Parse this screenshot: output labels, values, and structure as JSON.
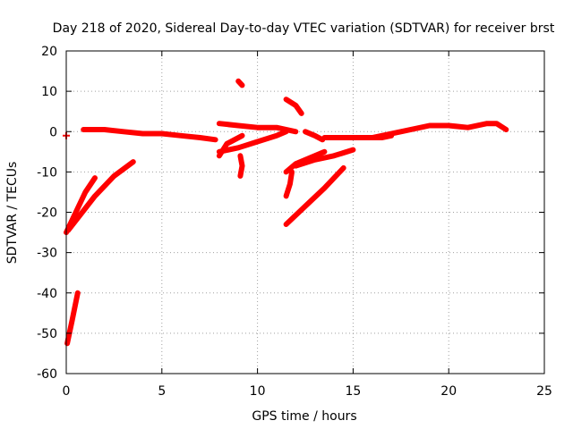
{
  "chart_data": {
    "type": "scatter",
    "title": "Day 218 of 2020, Sidereal Day-to-day VTEC variation (SDTVAR) for receiver brst",
    "xlabel": "GPS time / hours",
    "ylabel": "SDTVAR / TECUs",
    "xlim": [
      0,
      25
    ],
    "ylim": [
      -60,
      20
    ],
    "xticks": [
      0,
      5,
      10,
      15,
      20,
      25
    ],
    "yticks": [
      -60,
      -50,
      -40,
      -30,
      -20,
      -10,
      0,
      10,
      20
    ],
    "xtick_labels": [
      "0",
      "5",
      "10",
      "15",
      "20",
      "25"
    ],
    "ytick_labels": [
      "-60",
      "-50",
      "-40",
      "-30",
      "-20",
      "-10",
      "0",
      "10",
      "20"
    ],
    "grid": true,
    "marker": "+",
    "color": "#ff0000",
    "series": [
      {
        "name": "dot-0",
        "points": [
          [
            0.0,
            -1.0
          ]
        ]
      },
      {
        "name": "main-baseline",
        "points": [
          [
            0.9,
            0.5
          ],
          [
            2.0,
            0.5
          ],
          [
            3.0,
            0.0
          ],
          [
            4.0,
            -0.5
          ],
          [
            5.0,
            -0.5
          ],
          [
            6.0,
            -1.0
          ],
          [
            7.0,
            -1.5
          ],
          [
            7.8,
            -2.0
          ]
        ]
      },
      {
        "name": "steep-low",
        "points": [
          [
            0.05,
            -52.5
          ],
          [
            0.3,
            -47.0
          ],
          [
            0.6,
            -40.0
          ]
        ]
      },
      {
        "name": "steep-a",
        "points": [
          [
            0.0,
            -25.0
          ],
          [
            0.5,
            -20.0
          ],
          [
            1.0,
            -15.0
          ],
          [
            1.5,
            -11.5
          ]
        ]
      },
      {
        "name": "steep-b",
        "points": [
          [
            0.1,
            -24.5
          ],
          [
            1.5,
            -16.0
          ],
          [
            2.5,
            -11.0
          ],
          [
            3.5,
            -7.5
          ]
        ]
      },
      {
        "name": "arc-8-9",
        "points": [
          [
            8.0,
            -6.0
          ],
          [
            8.4,
            -3.0
          ],
          [
            8.8,
            -2.0
          ],
          [
            9.2,
            -1.0
          ]
        ]
      },
      {
        "name": "ramp-8-12",
        "points": [
          [
            8.0,
            -5.0
          ],
          [
            9.0,
            -4.0
          ],
          [
            10.0,
            -2.5
          ],
          [
            11.0,
            -1.0
          ],
          [
            11.5,
            0.0
          ]
        ]
      },
      {
        "name": "plateau-8-12",
        "points": [
          [
            8.0,
            2.0
          ],
          [
            9.0,
            1.5
          ],
          [
            10.0,
            1.0
          ],
          [
            11.0,
            1.0
          ],
          [
            12.0,
            0.0
          ]
        ]
      },
      {
        "name": "spike-9-high",
        "points": [
          [
            9.0,
            12.5
          ],
          [
            9.2,
            11.5
          ]
        ]
      },
      {
        "name": "spike-9-low",
        "points": [
          [
            9.1,
            -6.0
          ],
          [
            9.2,
            -8.5
          ],
          [
            9.1,
            -11.0
          ]
        ]
      },
      {
        "name": "dash-11-12",
        "points": [
          [
            11.5,
            8.0
          ],
          [
            12.0,
            6.5
          ],
          [
            12.3,
            4.5
          ]
        ]
      },
      {
        "name": "dip-11",
        "points": [
          [
            11.5,
            -16.0
          ],
          [
            11.7,
            -13.0
          ],
          [
            11.8,
            -10.0
          ]
        ]
      },
      {
        "name": "rise-11-13",
        "points": [
          [
            11.5,
            -10.0
          ],
          [
            12.0,
            -8.0
          ],
          [
            12.5,
            -7.0
          ],
          [
            13.0,
            -6.0
          ],
          [
            13.5,
            -5.0
          ]
        ]
      },
      {
        "name": "band-12-15",
        "points": [
          [
            12.0,
            -8.5
          ],
          [
            13.0,
            -7.0
          ],
          [
            14.0,
            -6.0
          ],
          [
            15.0,
            -4.5
          ]
        ]
      },
      {
        "name": "diagonal-11-14",
        "points": [
          [
            11.5,
            -23.0
          ],
          [
            12.5,
            -18.5
          ],
          [
            13.5,
            -14.0
          ],
          [
            14.5,
            -9.0
          ]
        ]
      },
      {
        "name": "hook-13",
        "points": [
          [
            12.5,
            0.0
          ],
          [
            13.0,
            -1.0
          ],
          [
            13.4,
            -2.0
          ]
        ]
      },
      {
        "name": "baseline-13-17",
        "points": [
          [
            13.5,
            -1.5
          ],
          [
            14.5,
            -1.5
          ],
          [
            15.5,
            -1.5
          ],
          [
            16.5,
            -1.5
          ],
          [
            17.0,
            -1.0
          ]
        ]
      },
      {
        "name": "baseline-16-23",
        "points": [
          [
            16.0,
            -1.5
          ],
          [
            17.5,
            0.0
          ],
          [
            19.0,
            1.5
          ],
          [
            20.0,
            1.5
          ],
          [
            21.0,
            1.0
          ],
          [
            22.0,
            2.0
          ],
          [
            22.5,
            2.0
          ],
          [
            23.0,
            0.5
          ]
        ]
      }
    ]
  }
}
